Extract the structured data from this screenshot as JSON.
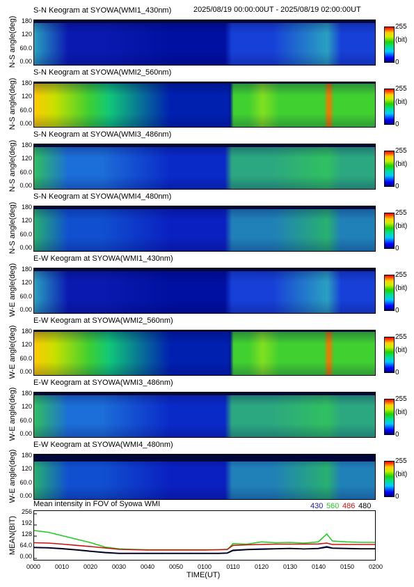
{
  "header": {
    "date_range": "2025/08/19 00:00:00UT - 2025/08/19 02:00:00UT"
  },
  "panels": [
    {
      "title": "S-N Keogram at SYOWA(WMI1_430nm)",
      "ylabel": "N-S angle(deg)",
      "ticks": [
        "180",
        "120",
        "60.0",
        "0.00"
      ]
    },
    {
      "title": "S-N Keogram at SYOWA(WMI2_560nm)",
      "ylabel": "N-S angle(deg)",
      "ticks": [
        "180",
        "120",
        "60.0",
        "0.00"
      ]
    },
    {
      "title": "S-N Keogram at SYOWA(WMI3_486nm)",
      "ylabel": "N-S angle(deg)",
      "ticks": [
        "180",
        "120",
        "60.0",
        "0.00"
      ]
    },
    {
      "title": "S-N Keogram at SYOWA(WMI4_480nm)",
      "ylabel": "N-S angle(deg)",
      "ticks": [
        "180",
        "120",
        "60.0",
        "0.00"
      ]
    },
    {
      "title": "E-W Keogram at SYOWA(WMI1_430nm)",
      "ylabel": "W-E angle(deg)",
      "ticks": [
        "180",
        "120",
        "60.0",
        "0.00"
      ]
    },
    {
      "title": "E-W Keogram at SYOWA(WMI2_560nm)",
      "ylabel": "W-E angle(deg)",
      "ticks": [
        "180",
        "120",
        "60.0",
        "0.00"
      ]
    },
    {
      "title": "E-W Keogram at SYOWA(WMI3_486nm)",
      "ylabel": "W-E angle(deg)",
      "ticks": [
        "180",
        "120",
        "60.0",
        "0.00"
      ]
    },
    {
      "title": "E-W Keogram at SYOWA(WMI4_480nm)",
      "ylabel": "W-E angle(deg)",
      "ticks": [
        "180",
        "120",
        "60.0",
        "0.00"
      ]
    }
  ],
  "colorbar": {
    "max": "255",
    "unit": "(bit)",
    "min": "0"
  },
  "mean_panel": {
    "title": "Mean intensity in FOV of Syowa WMI",
    "ylabel": "MEAN(BIT)",
    "ticks": [
      "256",
      "192",
      "128",
      "64.0",
      "0.00"
    ],
    "xlabel": "TIME(UT)",
    "xticks": [
      "0000",
      "0010",
      "0020",
      "0030",
      "0040",
      "0050",
      "0100",
      "0110",
      "0120",
      "0130",
      "0140",
      "0150",
      "0200"
    ]
  },
  "legend": [
    {
      "label": "430",
      "color": "#1a1aa0"
    },
    {
      "label": "560",
      "color": "#22cc22"
    },
    {
      "label": "486",
      "color": "#cc1111"
    },
    {
      "label": "480",
      "color": "#000000"
    }
  ],
  "chart_data": {
    "type": "line",
    "title": "Mean intensity in FOV of Syowa WMI",
    "xlabel": "TIME(UT)",
    "ylabel": "MEAN(BIT)",
    "x": [
      "0000",
      "0005",
      "0010",
      "0015",
      "0020",
      "0025",
      "0030",
      "0035",
      "0040",
      "0045",
      "0050",
      "0055",
      "0100",
      "0105",
      "0108",
      "0110",
      "0115",
      "0120",
      "0125",
      "0130",
      "0135",
      "0140",
      "0143",
      "0145",
      "0150",
      "0155",
      "0200"
    ],
    "ylim": [
      0,
      256
    ],
    "series": [
      {
        "name": "560",
        "color": "#22cc22",
        "values": [
          160,
          150,
          130,
          110,
          90,
          65,
          55,
          52,
          50,
          50,
          50,
          50,
          50,
          50,
          50,
          85,
          82,
          95,
          90,
          92,
          88,
          95,
          140,
          100,
          95,
          92,
          92
        ]
      },
      {
        "name": "486",
        "color": "#cc1111",
        "values": [
          90,
          88,
          82,
          75,
          68,
          60,
          52,
          50,
          48,
          48,
          48,
          48,
          48,
          50,
          52,
          75,
          78,
          80,
          82,
          82,
          82,
          83,
          88,
          80,
          80,
          80,
          80
        ]
      },
      {
        "name": "430",
        "color": "#1a1aa0",
        "values": [
          64,
          62,
          57,
          50,
          42,
          35,
          30,
          30,
          30,
          30,
          30,
          30,
          30,
          30,
          32,
          48,
          52,
          55,
          56,
          58,
          55,
          58,
          68,
          60,
          58,
          56,
          56
        ]
      },
      {
        "name": "480",
        "color": "#000000",
        "values": [
          62,
          60,
          55,
          48,
          40,
          33,
          28,
          28,
          28,
          28,
          28,
          28,
          28,
          28,
          30,
          45,
          50,
          52,
          55,
          57,
          54,
          56,
          64,
          58,
          56,
          55,
          55
        ]
      }
    ]
  }
}
